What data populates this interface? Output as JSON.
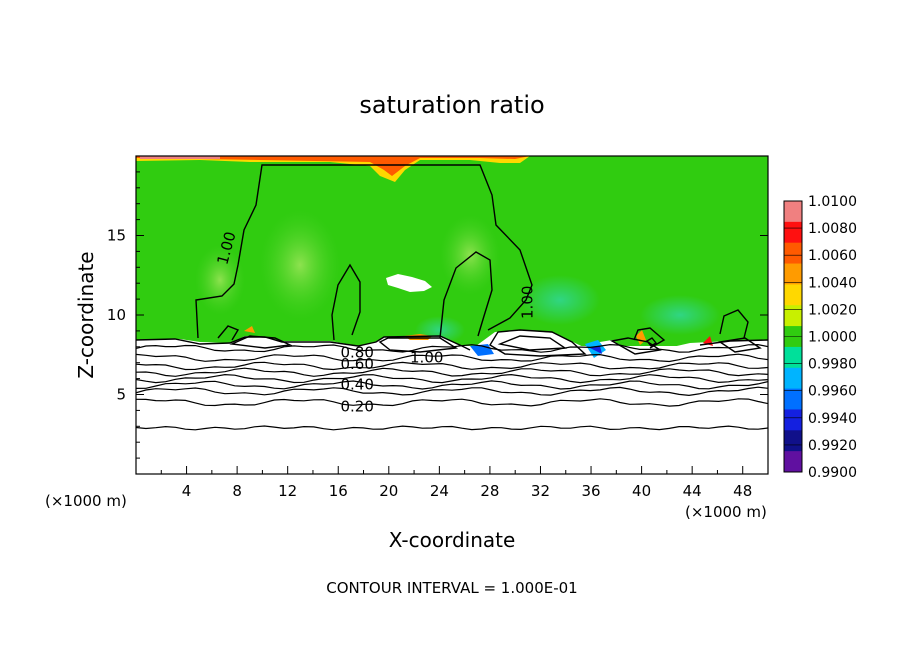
{
  "chart_data": {
    "type": "heatmap",
    "title": "saturation ratio",
    "xlabel": "X-coordinate",
    "ylabel": "Z-coordinate",
    "x_unit_left": "(×1000 m)",
    "x_unit_right": "(×1000 m)",
    "xlim": [
      0,
      50
    ],
    "ylim": [
      0,
      20
    ],
    "x_ticks": [
      4,
      8,
      12,
      16,
      20,
      24,
      28,
      32,
      36,
      40,
      44,
      48
    ],
    "y_ticks": [
      5,
      10,
      15
    ],
    "footer": "CONTOUR INTERVAL = 1.000E-01",
    "colorbar": {
      "labels": [
        "1.0100",
        "1.0080",
        "1.0060",
        "1.0040",
        "1.0020",
        "1.0000",
        "0.9980",
        "0.9960",
        "0.9940",
        "0.9920",
        "0.9900"
      ],
      "colors": [
        "#f08080",
        "#ff1010",
        "#ff5a00",
        "#ff9b00",
        "#ffd800",
        "#c8f000",
        "#30cc10",
        "#00e09a",
        "#00b4ff",
        "#0070ff",
        "#1420e0",
        "#10108a",
        "#6010a0"
      ]
    },
    "contour_labels": [
      {
        "text": "1.00",
        "x": 7.2,
        "z": 14.2,
        "rotate": -75
      },
      {
        "text": "1.00",
        "x": 31.0,
        "z": 10.8,
        "rotate": -90
      },
      {
        "text": "1.00",
        "x": 23.0,
        "z": 7.3,
        "rotate": 0
      },
      {
        "text": "0.80",
        "x": 17.5,
        "z": 7.6,
        "rotate": 0
      },
      {
        "text": "0.60",
        "x": 17.5,
        "z": 6.9,
        "rotate": 0
      },
      {
        "text": "0.40",
        "x": 17.5,
        "z": 5.6,
        "rotate": 0
      },
      {
        "text": "0.20",
        "x": 17.5,
        "z": 4.2,
        "rotate": 0
      }
    ],
    "contour_levels_z": [
      7.9,
      7.3,
      6.8,
      6.4,
      6.0,
      5.6,
      5.2,
      4.5,
      2.9
    ]
  }
}
